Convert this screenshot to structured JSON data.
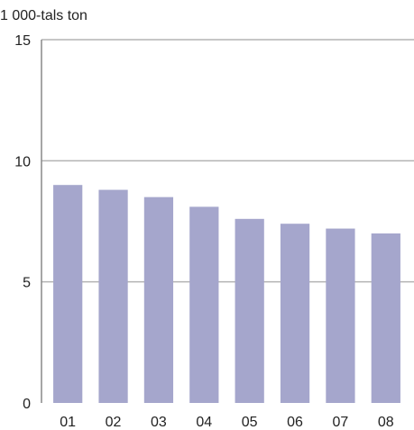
{
  "chart_data": {
    "type": "bar",
    "ylabel": "1 000-tals ton",
    "categories": [
      "01",
      "02",
      "03",
      "04",
      "05",
      "06",
      "07",
      "08"
    ],
    "values": [
      9.0,
      8.8,
      8.5,
      8.1,
      7.6,
      7.4,
      7.2,
      7.0
    ],
    "ylim": [
      0,
      15
    ],
    "yticks": [
      0,
      5,
      10,
      15
    ],
    "grid": true,
    "legend": "none",
    "bar_color": "#a5a6cc"
  }
}
